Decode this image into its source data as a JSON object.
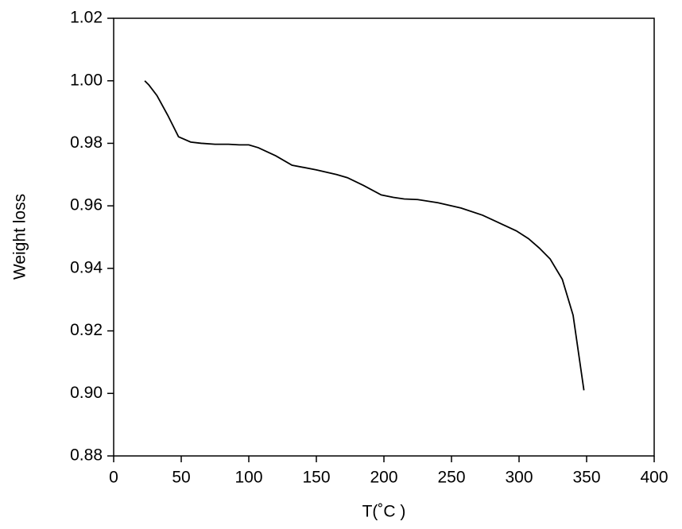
{
  "chart_data": {
    "type": "line",
    "x_label": "T(˚C )",
    "y_label": "Weight loss",
    "x": [
      23,
      26,
      32,
      40,
      48,
      57,
      65,
      75,
      85,
      93,
      100,
      107,
      120,
      132,
      150,
      165,
      173,
      185,
      198,
      207,
      215,
      225,
      240,
      257,
      273,
      283,
      298,
      307,
      315,
      323,
      332,
      340,
      348
    ],
    "series": [
      {
        "color": "#000000",
        "values": [
          1.0,
          0.9987,
          0.9953,
          0.989,
          0.9821,
          0.9804,
          0.98,
          0.9797,
          0.9797,
          0.9795,
          0.9795,
          0.9786,
          0.976,
          0.973,
          0.9715,
          0.97,
          0.969,
          0.9665,
          0.9635,
          0.9627,
          0.9622,
          0.962,
          0.961,
          0.9593,
          0.957,
          0.955,
          0.952,
          0.9495,
          0.9465,
          0.943,
          0.9365,
          0.925,
          0.901
        ]
      }
    ],
    "xlim": [
      0,
      400
    ],
    "xticks": [
      0,
      50,
      100,
      150,
      200,
      250,
      300,
      350,
      400
    ],
    "ylim": [
      0.88,
      1.02
    ],
    "yticks": [
      0.88,
      {
        "value": 0.9,
        "label": "0.90"
      },
      0.92,
      0.94,
      0.96,
      0.98,
      {
        "value": 1.0,
        "label": "1.00"
      },
      1.02
    ]
  }
}
